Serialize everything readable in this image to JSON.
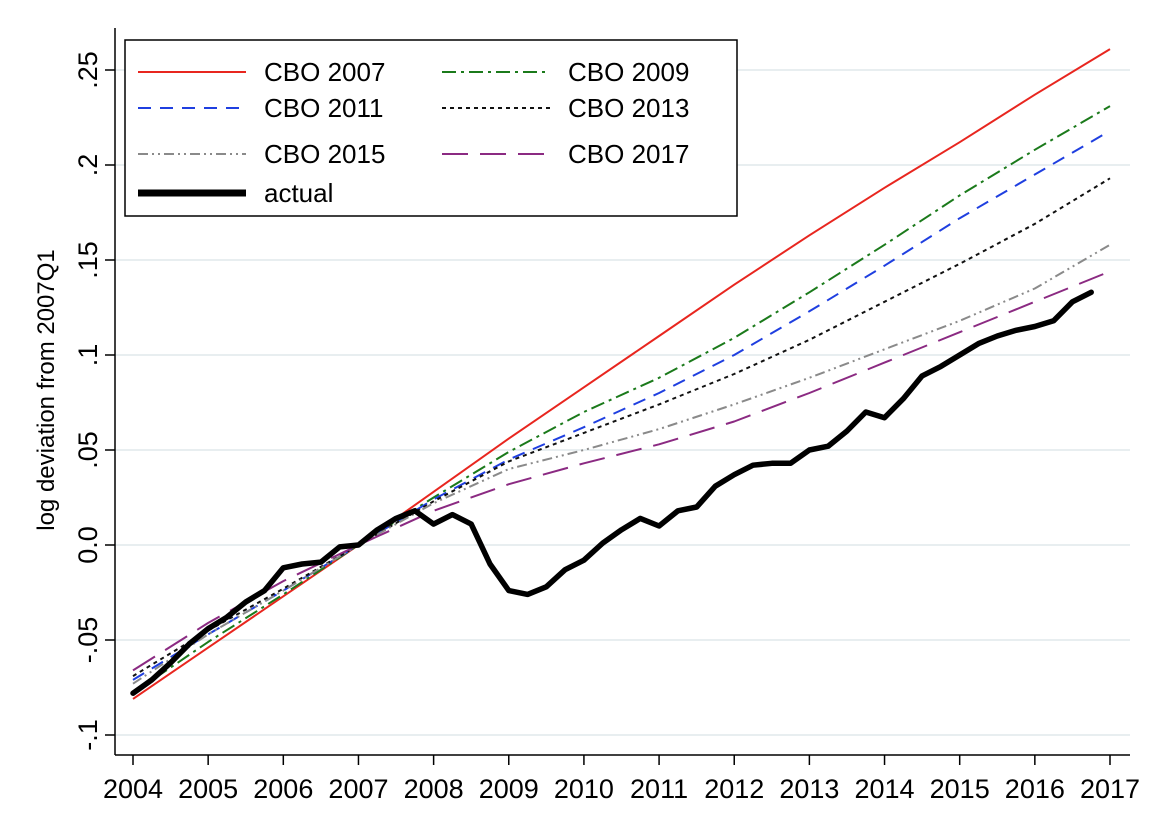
{
  "chart_data": {
    "type": "line",
    "title": "",
    "xlabel": "",
    "ylabel": "log deviation from 2007Q1",
    "xlim": [
      2004,
      2017
    ],
    "ylim": [
      -0.1,
      0.26
    ],
    "x_ticks": [
      2004,
      2005,
      2006,
      2007,
      2008,
      2009,
      2010,
      2011,
      2012,
      2013,
      2014,
      2015,
      2016,
      2017
    ],
    "x_tick_labels": [
      "2004",
      "2005",
      "2006",
      "2007",
      "2008",
      "2009",
      "2010",
      "2011",
      "2012",
      "2013",
      "2014",
      "2015",
      "2016",
      "2017"
    ],
    "y_ticks": [
      -0.1,
      -0.05,
      0,
      0.05,
      0.1,
      0.15,
      0.2,
      0.25
    ],
    "y_tick_labels": [
      "-.1",
      "-.05",
      "0.0",
      ".05",
      ".1",
      ".15",
      ".2",
      ".25"
    ],
    "grid": "horizontal",
    "legend_position": "top-left",
    "legend_columns": 2,
    "series": [
      {
        "name": "CBO 2007",
        "color": "#e8261f",
        "dash": "solid",
        "points": [
          [
            2004,
            -0.081
          ],
          [
            2005,
            -0.054
          ],
          [
            2006,
            -0.027
          ],
          [
            2007,
            0.0
          ],
          [
            2008,
            0.028
          ],
          [
            2009,
            0.056
          ],
          [
            2010,
            0.083
          ],
          [
            2011,
            0.11
          ],
          [
            2012,
            0.137
          ],
          [
            2013,
            0.163
          ],
          [
            2014,
            0.188
          ],
          [
            2015,
            0.212
          ],
          [
            2016,
            0.237
          ],
          [
            2017,
            0.261
          ]
        ]
      },
      {
        "name": "CBO 2009",
        "color": "#1b7a1b",
        "dash": "dashdot",
        "points": [
          [
            2004,
            -0.078
          ],
          [
            2005,
            -0.051
          ],
          [
            2006,
            -0.026
          ],
          [
            2007,
            0.0
          ],
          [
            2008,
            0.025
          ],
          [
            2009,
            0.049
          ],
          [
            2010,
            0.07
          ],
          [
            2011,
            0.088
          ],
          [
            2012,
            0.109
          ],
          [
            2013,
            0.133
          ],
          [
            2014,
            0.158
          ],
          [
            2015,
            0.184
          ],
          [
            2016,
            0.208
          ],
          [
            2017,
            0.231
          ]
        ]
      },
      {
        "name": "CBO 2011",
        "color": "#1f3fe0",
        "dash": "dash",
        "points": [
          [
            2004,
            -0.071
          ],
          [
            2005,
            -0.047
          ],
          [
            2006,
            -0.024
          ],
          [
            2007,
            0.0
          ],
          [
            2008,
            0.024
          ],
          [
            2009,
            0.045
          ],
          [
            2010,
            0.062
          ],
          [
            2011,
            0.08
          ],
          [
            2012,
            0.1
          ],
          [
            2013,
            0.123
          ],
          [
            2014,
            0.147
          ],
          [
            2015,
            0.172
          ],
          [
            2016,
            0.195
          ],
          [
            2017,
            0.218
          ]
        ]
      },
      {
        "name": "CBO 2013",
        "color": "#111111",
        "dash": "dot",
        "points": [
          [
            2004,
            -0.069
          ],
          [
            2005,
            -0.045
          ],
          [
            2006,
            -0.023
          ],
          [
            2007,
            0.0
          ],
          [
            2008,
            0.023
          ],
          [
            2009,
            0.044
          ],
          [
            2010,
            0.059
          ],
          [
            2011,
            0.074
          ],
          [
            2012,
            0.09
          ],
          [
            2013,
            0.108
          ],
          [
            2014,
            0.128
          ],
          [
            2015,
            0.148
          ],
          [
            2016,
            0.169
          ],
          [
            2017,
            0.193
          ]
        ]
      },
      {
        "name": "CBO 2015",
        "color": "#8a8a8a",
        "dash": "dashdotdot",
        "points": [
          [
            2004,
            -0.073
          ],
          [
            2005,
            -0.047
          ],
          [
            2006,
            -0.024
          ],
          [
            2007,
            0.0
          ],
          [
            2008,
            0.022
          ],
          [
            2009,
            0.04
          ],
          [
            2010,
            0.05
          ],
          [
            2011,
            0.061
          ],
          [
            2012,
            0.074
          ],
          [
            2013,
            0.088
          ],
          [
            2014,
            0.103
          ],
          [
            2015,
            0.118
          ],
          [
            2016,
            0.135
          ],
          [
            2017,
            0.158
          ]
        ]
      },
      {
        "name": "CBO 2017",
        "color": "#8b2a82",
        "dash": "longdash",
        "points": [
          [
            2004,
            -0.066
          ],
          [
            2005,
            -0.041
          ],
          [
            2006,
            -0.019
          ],
          [
            2007,
            0.0
          ],
          [
            2008,
            0.018
          ],
          [
            2009,
            0.032
          ],
          [
            2010,
            0.043
          ],
          [
            2011,
            0.053
          ],
          [
            2012,
            0.065
          ],
          [
            2013,
            0.08
          ],
          [
            2014,
            0.096
          ],
          [
            2015,
            0.112
          ],
          [
            2016,
            0.128
          ],
          [
            2017,
            0.144
          ]
        ]
      },
      {
        "name": "actual",
        "color": "#000000",
        "dash": "solid-thick",
        "points": [
          [
            2004,
            -0.078
          ],
          [
            2004.25,
            -0.071
          ],
          [
            2004.5,
            -0.062
          ],
          [
            2004.75,
            -0.052
          ],
          [
            2005,
            -0.044
          ],
          [
            2005.25,
            -0.038
          ],
          [
            2005.5,
            -0.03
          ],
          [
            2005.75,
            -0.024
          ],
          [
            2006,
            -0.012
          ],
          [
            2006.25,
            -0.01
          ],
          [
            2006.5,
            -0.009
          ],
          [
            2006.75,
            -0.001
          ],
          [
            2007,
            0.0
          ],
          [
            2007.25,
            0.008
          ],
          [
            2007.5,
            0.014
          ],
          [
            2007.75,
            0.018
          ],
          [
            2008,
            0.011
          ],
          [
            2008.25,
            0.016
          ],
          [
            2008.5,
            0.011
          ],
          [
            2008.75,
            -0.01
          ],
          [
            2009,
            -0.024
          ],
          [
            2009.25,
            -0.026
          ],
          [
            2009.5,
            -0.022
          ],
          [
            2009.75,
            -0.013
          ],
          [
            2010,
            -0.008
          ],
          [
            2010.25,
            0.001
          ],
          [
            2010.5,
            0.008
          ],
          [
            2010.75,
            0.014
          ],
          [
            2011,
            0.01
          ],
          [
            2011.25,
            0.018
          ],
          [
            2011.5,
            0.02
          ],
          [
            2011.75,
            0.031
          ],
          [
            2012,
            0.037
          ],
          [
            2012.25,
            0.042
          ],
          [
            2012.5,
            0.043
          ],
          [
            2012.75,
            0.043
          ],
          [
            2013,
            0.05
          ],
          [
            2013.25,
            0.052
          ],
          [
            2013.5,
            0.06
          ],
          [
            2013.75,
            0.07
          ],
          [
            2014,
            0.067
          ],
          [
            2014.25,
            0.077
          ],
          [
            2014.5,
            0.089
          ],
          [
            2014.75,
            0.094
          ],
          [
            2015,
            0.1
          ],
          [
            2015.25,
            0.106
          ],
          [
            2015.5,
            0.11
          ],
          [
            2015.75,
            0.113
          ],
          [
            2016,
            0.115
          ],
          [
            2016.25,
            0.118
          ],
          [
            2016.5,
            0.128
          ],
          [
            2016.75,
            0.133
          ]
        ]
      }
    ]
  }
}
